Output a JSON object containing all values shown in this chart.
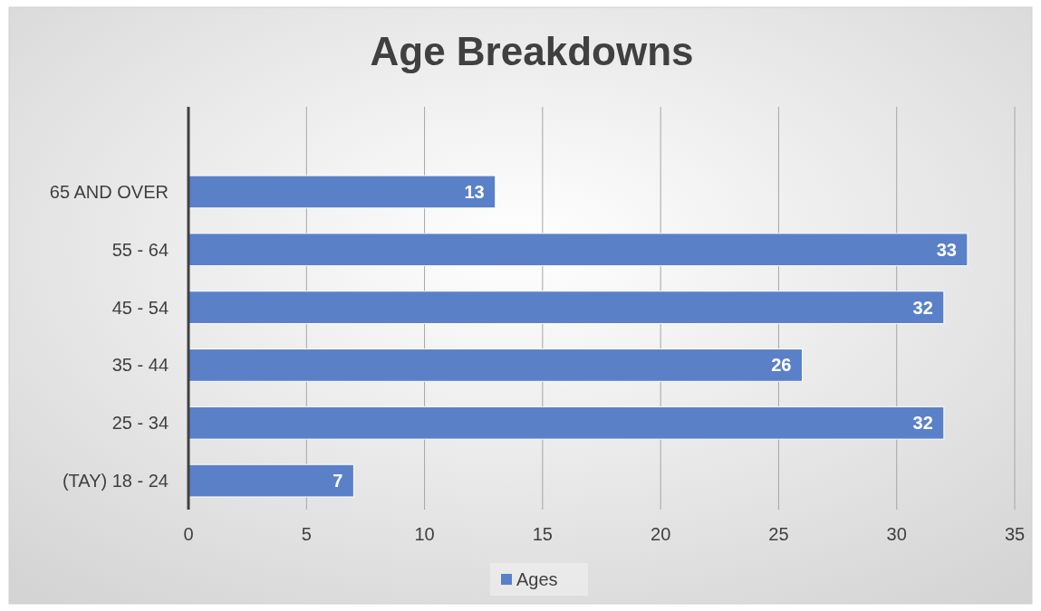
{
  "chart_data": {
    "type": "bar",
    "orientation": "horizontal",
    "title": "Age Breakdowns",
    "categories": [
      "65 AND OVER",
      "55 - 64",
      "45 - 54",
      "35 - 44",
      "25 - 34",
      "(TAY) 18 - 24"
    ],
    "series": [
      {
        "name": "Ages",
        "color": "#5a80c8",
        "values": [
          13,
          33,
          32,
          26,
          32,
          7
        ]
      }
    ],
    "data_labels": true,
    "xlim": [
      0,
      35
    ],
    "xticks": [
      0,
      5,
      10,
      15,
      20,
      25,
      30,
      35
    ],
    "grid": "x",
    "legend": "bottom"
  }
}
